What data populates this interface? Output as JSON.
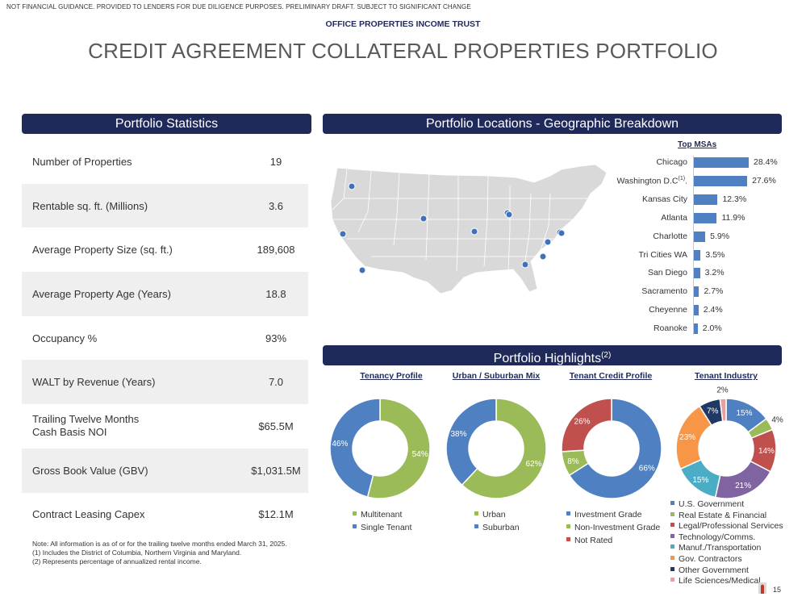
{
  "header": {
    "disclaimer": "NOT FINANCIAL GUIDANCE. PROVIDED TO LENDERS FOR DUE DILIGENCE PURPOSES. PRELIMINARY DRAFT. SUBJECT TO SIGNIFICANT CHANGE",
    "company": "OFFICE PROPERTIES INCOME TRUST",
    "title": "CREDIT AGREEMENT COLLATERAL PROPERTIES PORTFOLIO"
  },
  "stats": {
    "banner": "Portfolio Statistics",
    "rows": [
      {
        "label": "Number of Properties",
        "value": "19"
      },
      {
        "label": "Rentable sq. ft. (Millions)",
        "value": "3.6"
      },
      {
        "label": "Average Property Size (sq. ft.)",
        "value": "189,608"
      },
      {
        "label": "Average Property Age (Years)",
        "value": "18.8"
      },
      {
        "label": "Occupancy %",
        "value": "93%"
      },
      {
        "label": "WALT by Revenue (Years)",
        "value": "7.0"
      },
      {
        "label": "Trailing Twelve Months",
        "label2": "Cash Basis NOI",
        "value": "$65.5M"
      },
      {
        "label": "Gross Book Value (GBV)",
        "value": "$1,031.5M"
      },
      {
        "label": "Contract Leasing Capex",
        "value": "$12.1M"
      }
    ]
  },
  "notes": {
    "line1": "Note:  All information is as of or for the trailing twelve months ended March 31, 2025.",
    "line2": "(1)     Includes the District of Columbia, Northern Virginia and Maryland.",
    "line3": "(2)     Represents percentage of annualized rental income."
  },
  "geo": {
    "banner": "Portfolio Locations - Geographic Breakdown",
    "msa_title": "Top MSAs",
    "map_marker_color": "#3f72b8"
  },
  "highlights": {
    "banner": "Portfolio Highlights",
    "banner_sup": "(2)",
    "tenancy_title": "Tenancy Profile",
    "urban_title": "Urban / Suburban Mix",
    "credit_title": "Tenant Credit Profile",
    "industry_title": "Tenant Industry"
  },
  "colors": {
    "navy": "#1f2a5a",
    "blue": "#4f80c1",
    "green": "#9bbb59",
    "red": "#c0504d",
    "purple": "#8064a2",
    "teal": "#4bacc6",
    "orange": "#f79646",
    "dark_navy": "#1f3864",
    "pink": "#e6a0a0"
  },
  "page_number": "15",
  "chart_data": [
    {
      "type": "bar",
      "title": "Top MSAs",
      "categories": [
        "Chicago",
        "Washington D.C.",
        "Kansas City",
        "Atlanta",
        "Charlotte",
        "Tri Cities WA",
        "San Diego",
        "Sacramento",
        "Cheyenne",
        "Roanoke"
      ],
      "category_notes": [
        "",
        "(1)",
        "",
        "",
        "",
        "",
        "",
        "",
        "",
        ""
      ],
      "values": [
        28.4,
        27.6,
        12.3,
        11.9,
        5.9,
        3.5,
        3.2,
        2.7,
        2.4,
        2.0
      ],
      "value_labels": [
        "28.4%",
        "27.6%",
        "12.3%",
        "11.9%",
        "5.9%",
        "3.5%",
        "3.2%",
        "2.7%",
        "2.4%",
        "2.0%"
      ],
      "orientation": "horizontal"
    },
    {
      "type": "pie",
      "title": "Tenancy Profile",
      "labels": [
        "Multitenant",
        "Single Tenant"
      ],
      "values": [
        54,
        46
      ],
      "value_labels": [
        "54%",
        "46%"
      ],
      "colors": [
        "#9bbb59",
        "#4f80c1"
      ]
    },
    {
      "type": "pie",
      "title": "Urban / Suburban Mix",
      "labels": [
        "Urban",
        "Suburban"
      ],
      "values": [
        62,
        38
      ],
      "value_labels": [
        "62%",
        "38%"
      ],
      "colors": [
        "#9bbb59",
        "#4f80c1"
      ]
    },
    {
      "type": "pie",
      "title": "Tenant Credit Profile",
      "labels": [
        "Investment Grade",
        "Non-Investment Grade",
        "Not Rated"
      ],
      "values": [
        66,
        8,
        26
      ],
      "value_labels": [
        "66%",
        "8%",
        "26%"
      ],
      "colors": [
        "#4f80c1",
        "#9bbb59",
        "#c0504d"
      ]
    },
    {
      "type": "pie",
      "title": "Tenant Industry",
      "labels": [
        "U.S. Government",
        "Real Estate & Financial",
        "Legal/Professional Services",
        "Technology/Comms.",
        "Manuf./Transportation",
        "Gov. Contractors",
        "Other Government",
        "Life Sciences/Medical"
      ],
      "values": [
        15,
        4,
        14,
        21,
        15,
        23,
        7,
        2
      ],
      "value_labels": [
        "15%",
        "4%",
        "14%",
        "21%",
        "15%",
        "23%",
        "7%",
        "2%"
      ],
      "colors": [
        "#4f80c1",
        "#9bbb59",
        "#c0504d",
        "#8064a2",
        "#4bacc6",
        "#f79646",
        "#1f3864",
        "#e6a0a0"
      ]
    }
  ]
}
